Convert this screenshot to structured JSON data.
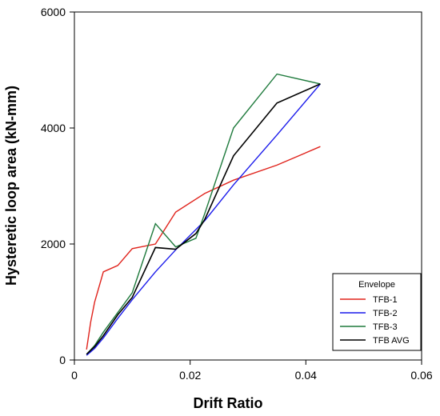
{
  "chart_data": {
    "type": "line",
    "xlabel": "Drift Ratio",
    "ylabel": "Hysteretic loop area (kN-mm)",
    "xlim": [
      0,
      0.06
    ],
    "ylim": [
      0,
      6000
    ],
    "xticks": [
      0,
      0.02,
      0.04,
      0.06
    ],
    "xtick_labels": [
      "0",
      "0.02",
      "0.04",
      "0.06"
    ],
    "yticks": [
      0,
      2000,
      4000,
      6000
    ],
    "ytick_labels": [
      "0",
      "2000",
      "4000",
      "6000"
    ],
    "grid": false,
    "legend": {
      "title": "Envelope",
      "position": "bottom-right"
    },
    "series": [
      {
        "name": "TFB-1",
        "color": "#e0231c",
        "x": [
          0.0021,
          0.0028,
          0.0035,
          0.005,
          0.0075,
          0.01,
          0.014,
          0.0175,
          0.0225,
          0.0275,
          0.035,
          0.0425
        ],
        "y": [
          180,
          650,
          1000,
          1520,
          1630,
          1920,
          2000,
          2550,
          2870,
          3100,
          3360,
          3680
        ]
      },
      {
        "name": "TFB-2",
        "color": "#1a1aeb",
        "x": [
          0.0021,
          0.0035,
          0.005,
          0.0075,
          0.01,
          0.014,
          0.0175,
          0.0225,
          0.0275,
          0.035,
          0.0425
        ],
        "y": [
          80,
          200,
          380,
          720,
          1040,
          1520,
          1900,
          2400,
          3020,
          3880,
          4760
        ]
      },
      {
        "name": "TFB-3",
        "color": "#1e7a3c",
        "x": [
          0.0021,
          0.0035,
          0.005,
          0.0075,
          0.01,
          0.014,
          0.0175,
          0.021,
          0.0225,
          0.0275,
          0.035,
          0.0425
        ],
        "y": [
          100,
          250,
          480,
          820,
          1160,
          2350,
          1950,
          2100,
          2520,
          4000,
          4930,
          4760
        ]
      },
      {
        "name": "TFB AVG",
        "color": "#000000",
        "x": [
          0.0021,
          0.0035,
          0.005,
          0.0075,
          0.01,
          0.014,
          0.0175,
          0.021,
          0.0225,
          0.0275,
          0.035,
          0.0425
        ],
        "y": [
          100,
          230,
          420,
          780,
          1080,
          1940,
          1910,
          2180,
          2420,
          3520,
          4430,
          4760
        ]
      }
    ]
  }
}
